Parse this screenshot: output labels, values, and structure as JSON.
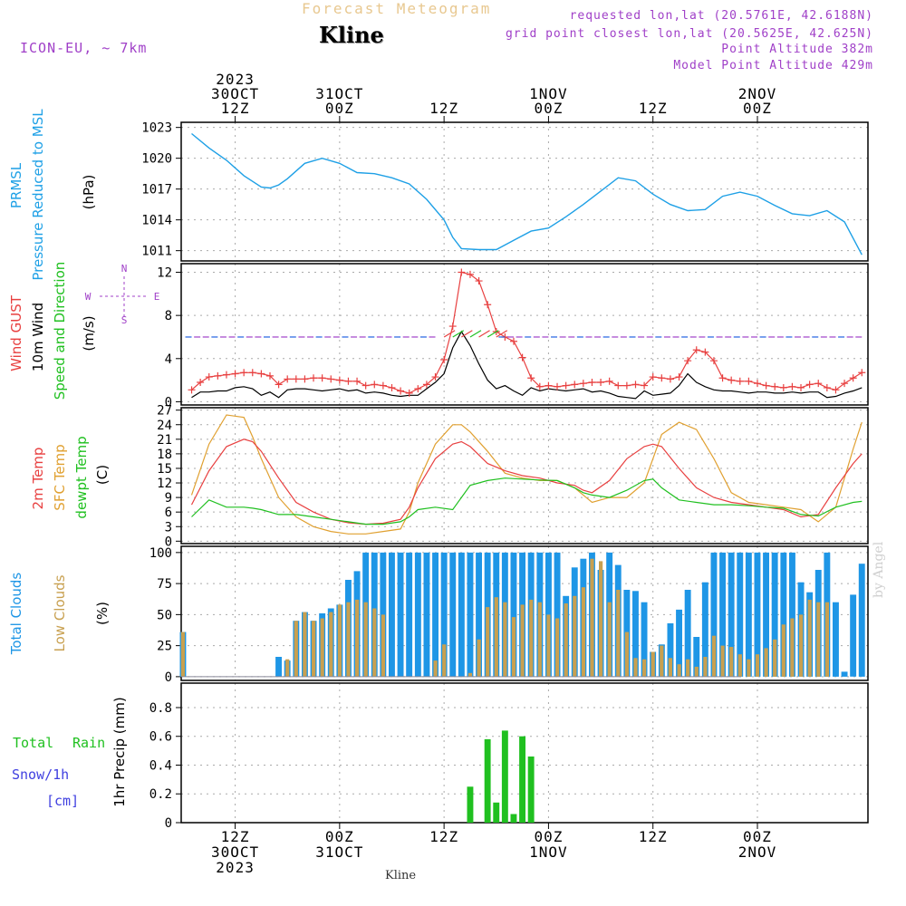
{
  "header": {
    "title": "Forecast Meteogram",
    "station": "Kline",
    "model": "ICON-EU, ~ 7km",
    "requested": "requested lon,lat (20.5761E, 42.6188N)",
    "closest": "grid point closest lon,lat (20.5625E, 42.625N)",
    "point_altitude": "Point Altitude 382m",
    "model_altitude": "Model Point Altitude 429m",
    "credit": "by Angel",
    "footer_station": "Kline"
  },
  "time_axis": {
    "top_labels": [
      {
        "t": 12,
        "lines": [
          "2023",
          "30OCT",
          "12Z"
        ]
      },
      {
        "t": 24,
        "lines": [
          "31OCT",
          "00Z"
        ]
      },
      {
        "t": 36,
        "lines": [
          "12Z"
        ]
      },
      {
        "t": 48,
        "lines": [
          "1NOV",
          "00Z"
        ]
      },
      {
        "t": 60,
        "lines": [
          "12Z"
        ]
      },
      {
        "t": 72,
        "lines": [
          "2NOV",
          "00Z"
        ]
      }
    ],
    "bottom_labels": [
      {
        "t": 12,
        "lines": [
          "12Z",
          "30OCT",
          "2023"
        ]
      },
      {
        "t": 24,
        "lines": [
          "00Z",
          "31OCT"
        ]
      },
      {
        "t": 36,
        "lines": [
          "12Z"
        ]
      },
      {
        "t": 48,
        "lines": [
          "00Z",
          "1NOV"
        ]
      },
      {
        "t": 60,
        "lines": [
          "12Z"
        ]
      },
      {
        "t": 72,
        "lines": [
          "00Z",
          "2NOV"
        ]
      }
    ]
  },
  "colors": {
    "pressure": "#1ea0e6",
    "gust": "#e84040",
    "wind": "#000000",
    "t2m": "#e84040",
    "sfc": "#e0a030",
    "dew": "#20c020",
    "total_cloud": "#1e96e6",
    "low_cloud": "#c8a050",
    "rain": "#20c020",
    "snow": "#4040e0",
    "purple": "#a040c8"
  },
  "chart_data": [
    {
      "type": "line",
      "panel": "pressure",
      "labels": {
        "left1": "PRMSL",
        "left2": "Pressure Reduced to MSL",
        "unit": "(hPa)"
      },
      "yticks": [
        1011,
        1014,
        1017,
        1020,
        1023
      ],
      "ylim": [
        1010,
        1023.5
      ],
      "x": [
        7,
        9,
        11,
        13,
        15,
        16,
        17,
        18,
        20,
        22,
        24,
        26,
        28,
        30,
        32,
        34,
        36,
        37,
        38,
        40,
        42,
        44,
        46,
        48,
        50,
        52,
        54,
        56,
        58,
        60,
        62,
        64,
        66,
        68,
        70,
        72,
        74,
        76,
        78,
        80,
        82,
        84
      ],
      "series": [
        {
          "name": "PRMSL",
          "values": [
            1022.4,
            1021.0,
            1019.8,
            1018.3,
            1017.2,
            1017.1,
            1017.4,
            1018.0,
            1019.5,
            1020.0,
            1019.5,
            1018.6,
            1018.5,
            1018.1,
            1017.5,
            1016.0,
            1014.0,
            1012.3,
            1011.2,
            1011.1,
            1011.1,
            1012.0,
            1012.9,
            1013.2,
            1014.3,
            1015.5,
            1016.8,
            1018.1,
            1017.8,
            1016.5,
            1015.5,
            1014.9,
            1015.0,
            1016.3,
            1016.7,
            1016.3,
            1015.4,
            1014.6,
            1014.4,
            1014.9,
            1013.8,
            1010.6
          ]
        }
      ]
    },
    {
      "type": "line",
      "panel": "wind",
      "labels": {
        "left1": "Wind GUST",
        "left2": "10m Wind",
        "left3": "Speed and Direction",
        "unit": "(m/s)",
        "compass_n": "N",
        "compass_s": "S",
        "compass_w": "W",
        "compass_e": "E"
      },
      "yticks": [
        0,
        4,
        8,
        12
      ],
      "ylim": [
        -0.3,
        12.8
      ],
      "x": [
        7,
        8,
        9,
        10,
        11,
        12,
        13,
        14,
        15,
        16,
        17,
        18,
        19,
        20,
        21,
        22,
        23,
        24,
        25,
        26,
        27,
        28,
        29,
        30,
        31,
        32,
        33,
        34,
        35,
        36,
        37,
        38,
        39,
        40,
        41,
        42,
        43,
        44,
        45,
        46,
        47,
        48,
        49,
        50,
        51,
        52,
        53,
        54,
        55,
        56,
        57,
        58,
        59,
        60,
        61,
        62,
        63,
        64,
        65,
        66,
        67,
        68,
        69,
        70,
        71,
        72,
        73,
        74,
        75,
        76,
        77,
        78,
        79,
        80,
        81,
        82,
        83,
        84
      ],
      "series": [
        {
          "name": "Wind GUST",
          "values": [
            1.1,
            1.8,
            2.3,
            2.4,
            2.5,
            2.6,
            2.7,
            2.7,
            2.6,
            2.4,
            1.6,
            2.1,
            2.1,
            2.1,
            2.2,
            2.2,
            2.1,
            2.0,
            1.9,
            1.9,
            1.5,
            1.6,
            1.5,
            1.3,
            1.0,
            0.8,
            1.2,
            1.6,
            2.3,
            3.9,
            7.0,
            12.0,
            11.8,
            11.2,
            9.0,
            6.5,
            6.0,
            5.6,
            4.1,
            2.2,
            1.4,
            1.5,
            1.4,
            1.5,
            1.6,
            1.7,
            1.8,
            1.8,
            1.9,
            1.5,
            1.5,
            1.6,
            1.5,
            2.3,
            2.2,
            2.1,
            2.3,
            3.8,
            4.8,
            4.6,
            3.8,
            2.2,
            2.0,
            1.9,
            1.9,
            1.7,
            1.5,
            1.4,
            1.3,
            1.4,
            1.3,
            1.6,
            1.7,
            1.3,
            1.1,
            1.7,
            2.2,
            2.7
          ]
        },
        {
          "name": "10m Wind",
          "values": [
            0.4,
            0.9,
            0.9,
            1.0,
            1.0,
            1.3,
            1.4,
            1.2,
            0.6,
            0.9,
            0.4,
            1.1,
            1.2,
            1.2,
            1.1,
            1.0,
            1.1,
            1.2,
            1.0,
            1.1,
            0.8,
            0.9,
            0.8,
            0.6,
            0.5,
            0.6,
            0.6,
            1.2,
            1.8,
            2.6,
            5.0,
            6.5,
            5.2,
            3.5,
            2.0,
            1.2,
            1.5,
            1.0,
            0.6,
            1.3,
            1.0,
            1.2,
            1.1,
            1.0,
            1.1,
            1.2,
            0.9,
            1.0,
            0.8,
            0.5,
            0.4,
            0.3,
            1.0,
            0.6,
            0.7,
            0.8,
            1.5,
            2.6,
            1.8,
            1.4,
            1.1,
            1.0,
            1.0,
            0.9,
            0.8,
            0.9,
            0.9,
            0.8,
            0.8,
            0.9,
            0.8,
            0.9,
            0.9,
            0.4,
            0.5,
            0.8,
            1.0,
            1.3
          ]
        }
      ]
    },
    {
      "type": "line",
      "panel": "temperature",
      "labels": {
        "left1": "2m Temp",
        "left2": "SFC Temp",
        "left3": "dewpt Temp",
        "unit": "(C)"
      },
      "yticks": [
        0,
        3,
        6,
        9,
        12,
        15,
        18,
        21,
        24,
        27
      ],
      "ylim": [
        -0.5,
        27.5
      ],
      "x": [
        7,
        9,
        11,
        13,
        14,
        15,
        17,
        19,
        21,
        23,
        25,
        27,
        29,
        31,
        32,
        33,
        35,
        37,
        38,
        39,
        41,
        43,
        45,
        47,
        49,
        51,
        52,
        53,
        55,
        57,
        59,
        60,
        61,
        63,
        65,
        67,
        69,
        71,
        73,
        75,
        77,
        79,
        81,
        83,
        84
      ],
      "series": [
        {
          "name": "2m Temp",
          "values": [
            7.5,
            14.5,
            19.5,
            21,
            20.5,
            18.5,
            13,
            8,
            6,
            4.5,
            3.8,
            3.5,
            3.7,
            4.5,
            7,
            11,
            17,
            20,
            20.5,
            19.5,
            16,
            14.5,
            13.5,
            13,
            12,
            11.5,
            10.5,
            10,
            12.5,
            17,
            19.5,
            20,
            19.5,
            15,
            11,
            9,
            8,
            7.5,
            7,
            6.5,
            5,
            5.5,
            11,
            16,
            18
          ]
        },
        {
          "name": "SFC Temp",
          "values": [
            9.5,
            20,
            26,
            25.5,
            21.5,
            17,
            9,
            5,
            3,
            2,
            1.5,
            1.5,
            2,
            2.5,
            6,
            12,
            20,
            24,
            24,
            22.5,
            18.5,
            14,
            13,
            12.5,
            12.5,
            11,
            9.5,
            8,
            9,
            9,
            12,
            17,
            22,
            24.5,
            23,
            17,
            10,
            8,
            7.5,
            7,
            6.5,
            4,
            7,
            19,
            24.5
          ]
        },
        {
          "name": "dewpt Temp",
          "values": [
            5,
            8.5,
            7,
            7,
            6.8,
            6.5,
            5.5,
            5.5,
            5,
            4.5,
            4,
            3.5,
            3.5,
            4,
            5,
            6.5,
            7,
            6.5,
            9,
            11.5,
            12.5,
            13,
            12.8,
            12.6,
            12.5,
            11,
            10,
            9.5,
            9,
            10.5,
            12.5,
            12.8,
            11,
            8.5,
            8,
            7.5,
            7.5,
            7.3,
            7,
            6.8,
            5.5,
            5.2,
            7,
            8,
            8.2
          ]
        }
      ]
    },
    {
      "type": "bar",
      "panel": "clouds",
      "labels": {
        "left1": "Total Clouds",
        "left2": "Low Clouds",
        "unit": "(%)"
      },
      "yticks": [
        0,
        25,
        50,
        75,
        100
      ],
      "ylim": [
        -3,
        105
      ],
      "x": [
        6,
        7,
        8,
        9,
        10,
        11,
        12,
        13,
        14,
        15,
        16,
        17,
        18,
        19,
        20,
        21,
        22,
        23,
        24,
        25,
        26,
        27,
        28,
        29,
        30,
        31,
        32,
        33,
        34,
        35,
        36,
        37,
        38,
        39,
        40,
        41,
        42,
        43,
        44,
        45,
        46,
        47,
        48,
        49,
        50,
        51,
        52,
        53,
        54,
        55,
        56,
        57,
        58,
        59,
        60,
        61,
        62,
        63,
        64,
        65,
        66,
        67,
        68,
        69,
        70,
        71,
        72,
        73,
        74,
        75,
        76,
        77,
        78,
        79,
        80,
        81,
        82,
        83,
        84
      ],
      "series": [
        {
          "name": "Total Clouds",
          "values": [
            36,
            0,
            0,
            0,
            0,
            0,
            0,
            0,
            0,
            0,
            0,
            16,
            13,
            45,
            52,
            45,
            51,
            55,
            58,
            78,
            85,
            100,
            100,
            100,
            100,
            100,
            100,
            100,
            100,
            100,
            100,
            100,
            100,
            100,
            100,
            100,
            100,
            100,
            100,
            100,
            100,
            100,
            100,
            100,
            65,
            88,
            95,
            100,
            86,
            100,
            90,
            70,
            69,
            60,
            20,
            26,
            43,
            54,
            70,
            32,
            76,
            100,
            100,
            100,
            100,
            100,
            100,
            100,
            100,
            100,
            100,
            76,
            68,
            86,
            100,
            60,
            4,
            66,
            91
          ]
        },
        {
          "name": "Low Clouds",
          "values": [
            36,
            0,
            0,
            0,
            0,
            0,
            0,
            0,
            0,
            0,
            0,
            0,
            14,
            45,
            52,
            45,
            47,
            52,
            58,
            60,
            62,
            60,
            55,
            50,
            0,
            0,
            0,
            0,
            0,
            13,
            26,
            0,
            0,
            3,
            30,
            56,
            64,
            60,
            48,
            58,
            62,
            60,
            50,
            47,
            59,
            65,
            72,
            95,
            93,
            60,
            70,
            36,
            15,
            14,
            20,
            25,
            15,
            10,
            14,
            8,
            16,
            33,
            25,
            24,
            18,
            14,
            18,
            23,
            30,
            42,
            47,
            50,
            62,
            60,
            60,
            0,
            0,
            0,
            0
          ]
        }
      ]
    },
    {
      "type": "bar",
      "panel": "precip",
      "labels": {
        "left1": "Total",
        "left2": "Rain",
        "left3": "Snow/1h",
        "left4": "[cm]",
        "unit": "1hr Precip (mm)"
      },
      "yticks": [
        0,
        0.2,
        0.4,
        0.6,
        0.8
      ],
      "ylim": [
        0,
        0.97
      ],
      "x": [
        39,
        41,
        42,
        43,
        44,
        45,
        46
      ],
      "series": [
        {
          "name": "Total Rain",
          "values": [
            0.25,
            0.58,
            0.14,
            0.64,
            0.06,
            0.6,
            0.46
          ]
        }
      ]
    }
  ]
}
